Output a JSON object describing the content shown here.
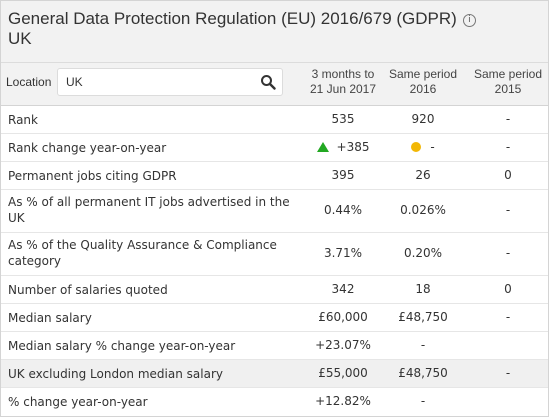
{
  "header": {
    "title": "General Data Protection Regulation (EU) 2016/679 (GDPR)",
    "info_glyph": "i",
    "subtitle": "UK"
  },
  "location": {
    "label": "Location",
    "value": "UK"
  },
  "columns": [
    {
      "line1": "3 months to",
      "line2": "21 Jun 2017"
    },
    {
      "line1": "Same period",
      "line2": "2016"
    },
    {
      "line1": "Same period",
      "line2": "2015"
    }
  ],
  "rows": [
    {
      "label": "Rank",
      "v1": "535",
      "v2": "920",
      "v3": "-"
    },
    {
      "label": "Rank change year-on-year",
      "v1": "+385",
      "v2": "-",
      "v3": "-"
    },
    {
      "label": "Permanent jobs citing GDPR",
      "v1": "395",
      "v2": "26",
      "v3": "0"
    },
    {
      "label": "As % of all permanent IT jobs advertised in the UK",
      "v1": "0.44%",
      "v2": "0.026%",
      "v3": "-"
    },
    {
      "label": "As % of the Quality Assurance & Compliance category",
      "v1": "3.71%",
      "v2": "0.20%",
      "v3": "-"
    },
    {
      "label": "Number of salaries quoted",
      "v1": "342",
      "v2": "18",
      "v3": "0"
    },
    {
      "label": "Median salary",
      "v1": "£60,000",
      "v2": "£48,750",
      "v3": "-"
    },
    {
      "label": "Median salary % change year-on-year",
      "v1": "+23.07%",
      "v2": "-",
      "v3": ""
    },
    {
      "label": "UK excluding London median salary",
      "v1": "£55,000",
      "v2": "£48,750",
      "v3": "-"
    },
    {
      "label": "% change year-on-year",
      "v1": "+12.82%",
      "v2": "-",
      "v3": ""
    }
  ],
  "icons": {
    "rank_up": "green-up-triangle-icon",
    "rank_neutral": "yellow-dot-icon"
  },
  "colors": {
    "up": "#22a822",
    "neutral": "#f2b705",
    "shaded_row": "#f0f0f0"
  }
}
